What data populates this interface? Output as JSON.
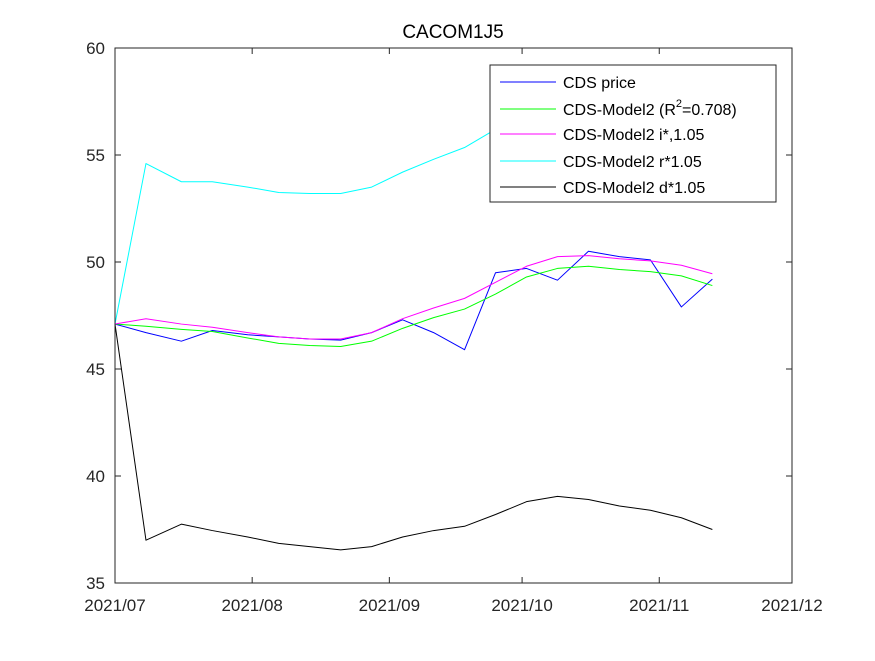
{
  "chart_data": {
    "type": "line",
    "title": "CACOM1J5",
    "xlabel": "",
    "ylabel": "",
    "x_axis": {
      "type": "date",
      "range": [
        "2021-07-01",
        "2021-12-01"
      ],
      "ticks": [
        {
          "date": "2021-07-01",
          "label": "2021/07"
        },
        {
          "date": "2021-08-01",
          "label": "2021/08"
        },
        {
          "date": "2021-09-01",
          "label": "2021/09"
        },
        {
          "date": "2021-10-01",
          "label": "2021/10"
        },
        {
          "date": "2021-11-01",
          "label": "2021/11"
        },
        {
          "date": "2021-12-01",
          "label": "2021/12"
        }
      ]
    },
    "y_axis": {
      "range": [
        35,
        60
      ],
      "ticks": [
        35,
        40,
        45,
        50,
        55,
        60
      ]
    },
    "grid": false,
    "legend_position": "top-right",
    "x": [
      "2021-07-01",
      "2021-07-08",
      "2021-07-16",
      "2021-07-23",
      "2021-07-31",
      "2021-08-07",
      "2021-08-14",
      "2021-08-21",
      "2021-08-28",
      "2021-09-04",
      "2021-09-11",
      "2021-09-18",
      "2021-09-25",
      "2021-10-02",
      "2021-10-09",
      "2021-10-16",
      "2021-10-23",
      "2021-10-30",
      "2021-11-06",
      "2021-11-13"
    ],
    "series": [
      {
        "name": "CDS price",
        "color": "#0000ff",
        "values": [
          47.1,
          46.7,
          46.3,
          46.8,
          46.6,
          46.5,
          46.4,
          46.35,
          46.7,
          47.3,
          46.7,
          45.9,
          49.5,
          49.7,
          49.15,
          50.5,
          50.25,
          50.1,
          47.9,
          49.2
        ]
      },
      {
        "name_parts": [
          "CDS-Model2 (R",
          "2",
          "=0.708)"
        ],
        "color": "#00ff00",
        "values": [
          47.1,
          47.0,
          46.85,
          46.75,
          46.45,
          46.2,
          46.1,
          46.05,
          46.3,
          46.9,
          47.4,
          47.8,
          48.5,
          49.3,
          49.7,
          49.8,
          49.65,
          49.55,
          49.35,
          48.9
        ]
      },
      {
        "name": "CDS-Model2 i*,1.05",
        "color": "#ff00ff",
        "values": [
          47.1,
          47.35,
          47.1,
          46.95,
          46.7,
          46.5,
          46.4,
          46.4,
          46.7,
          47.35,
          47.85,
          48.3,
          49.05,
          49.8,
          50.25,
          50.3,
          50.15,
          50.05,
          49.85,
          49.45
        ]
      },
      {
        "name": "CDS-Model2 r*1.05",
        "color": "#00ffff",
        "values": [
          47.1,
          54.6,
          53.75,
          53.75,
          53.5,
          53.25,
          53.2,
          53.2,
          53.5,
          54.2,
          54.8,
          55.35,
          56.2,
          57.2,
          57.8,
          57.9,
          57.7,
          57.6,
          57.45,
          57.0
        ]
      },
      {
        "name": "CDS-Model2 d*1.05",
        "color": "#000000",
        "values": [
          47.1,
          37.0,
          37.75,
          37.45,
          37.15,
          36.85,
          36.7,
          36.55,
          36.7,
          37.15,
          37.45,
          37.65,
          38.2,
          38.8,
          39.05,
          38.9,
          38.6,
          38.4,
          38.05,
          37.5
        ]
      }
    ]
  }
}
